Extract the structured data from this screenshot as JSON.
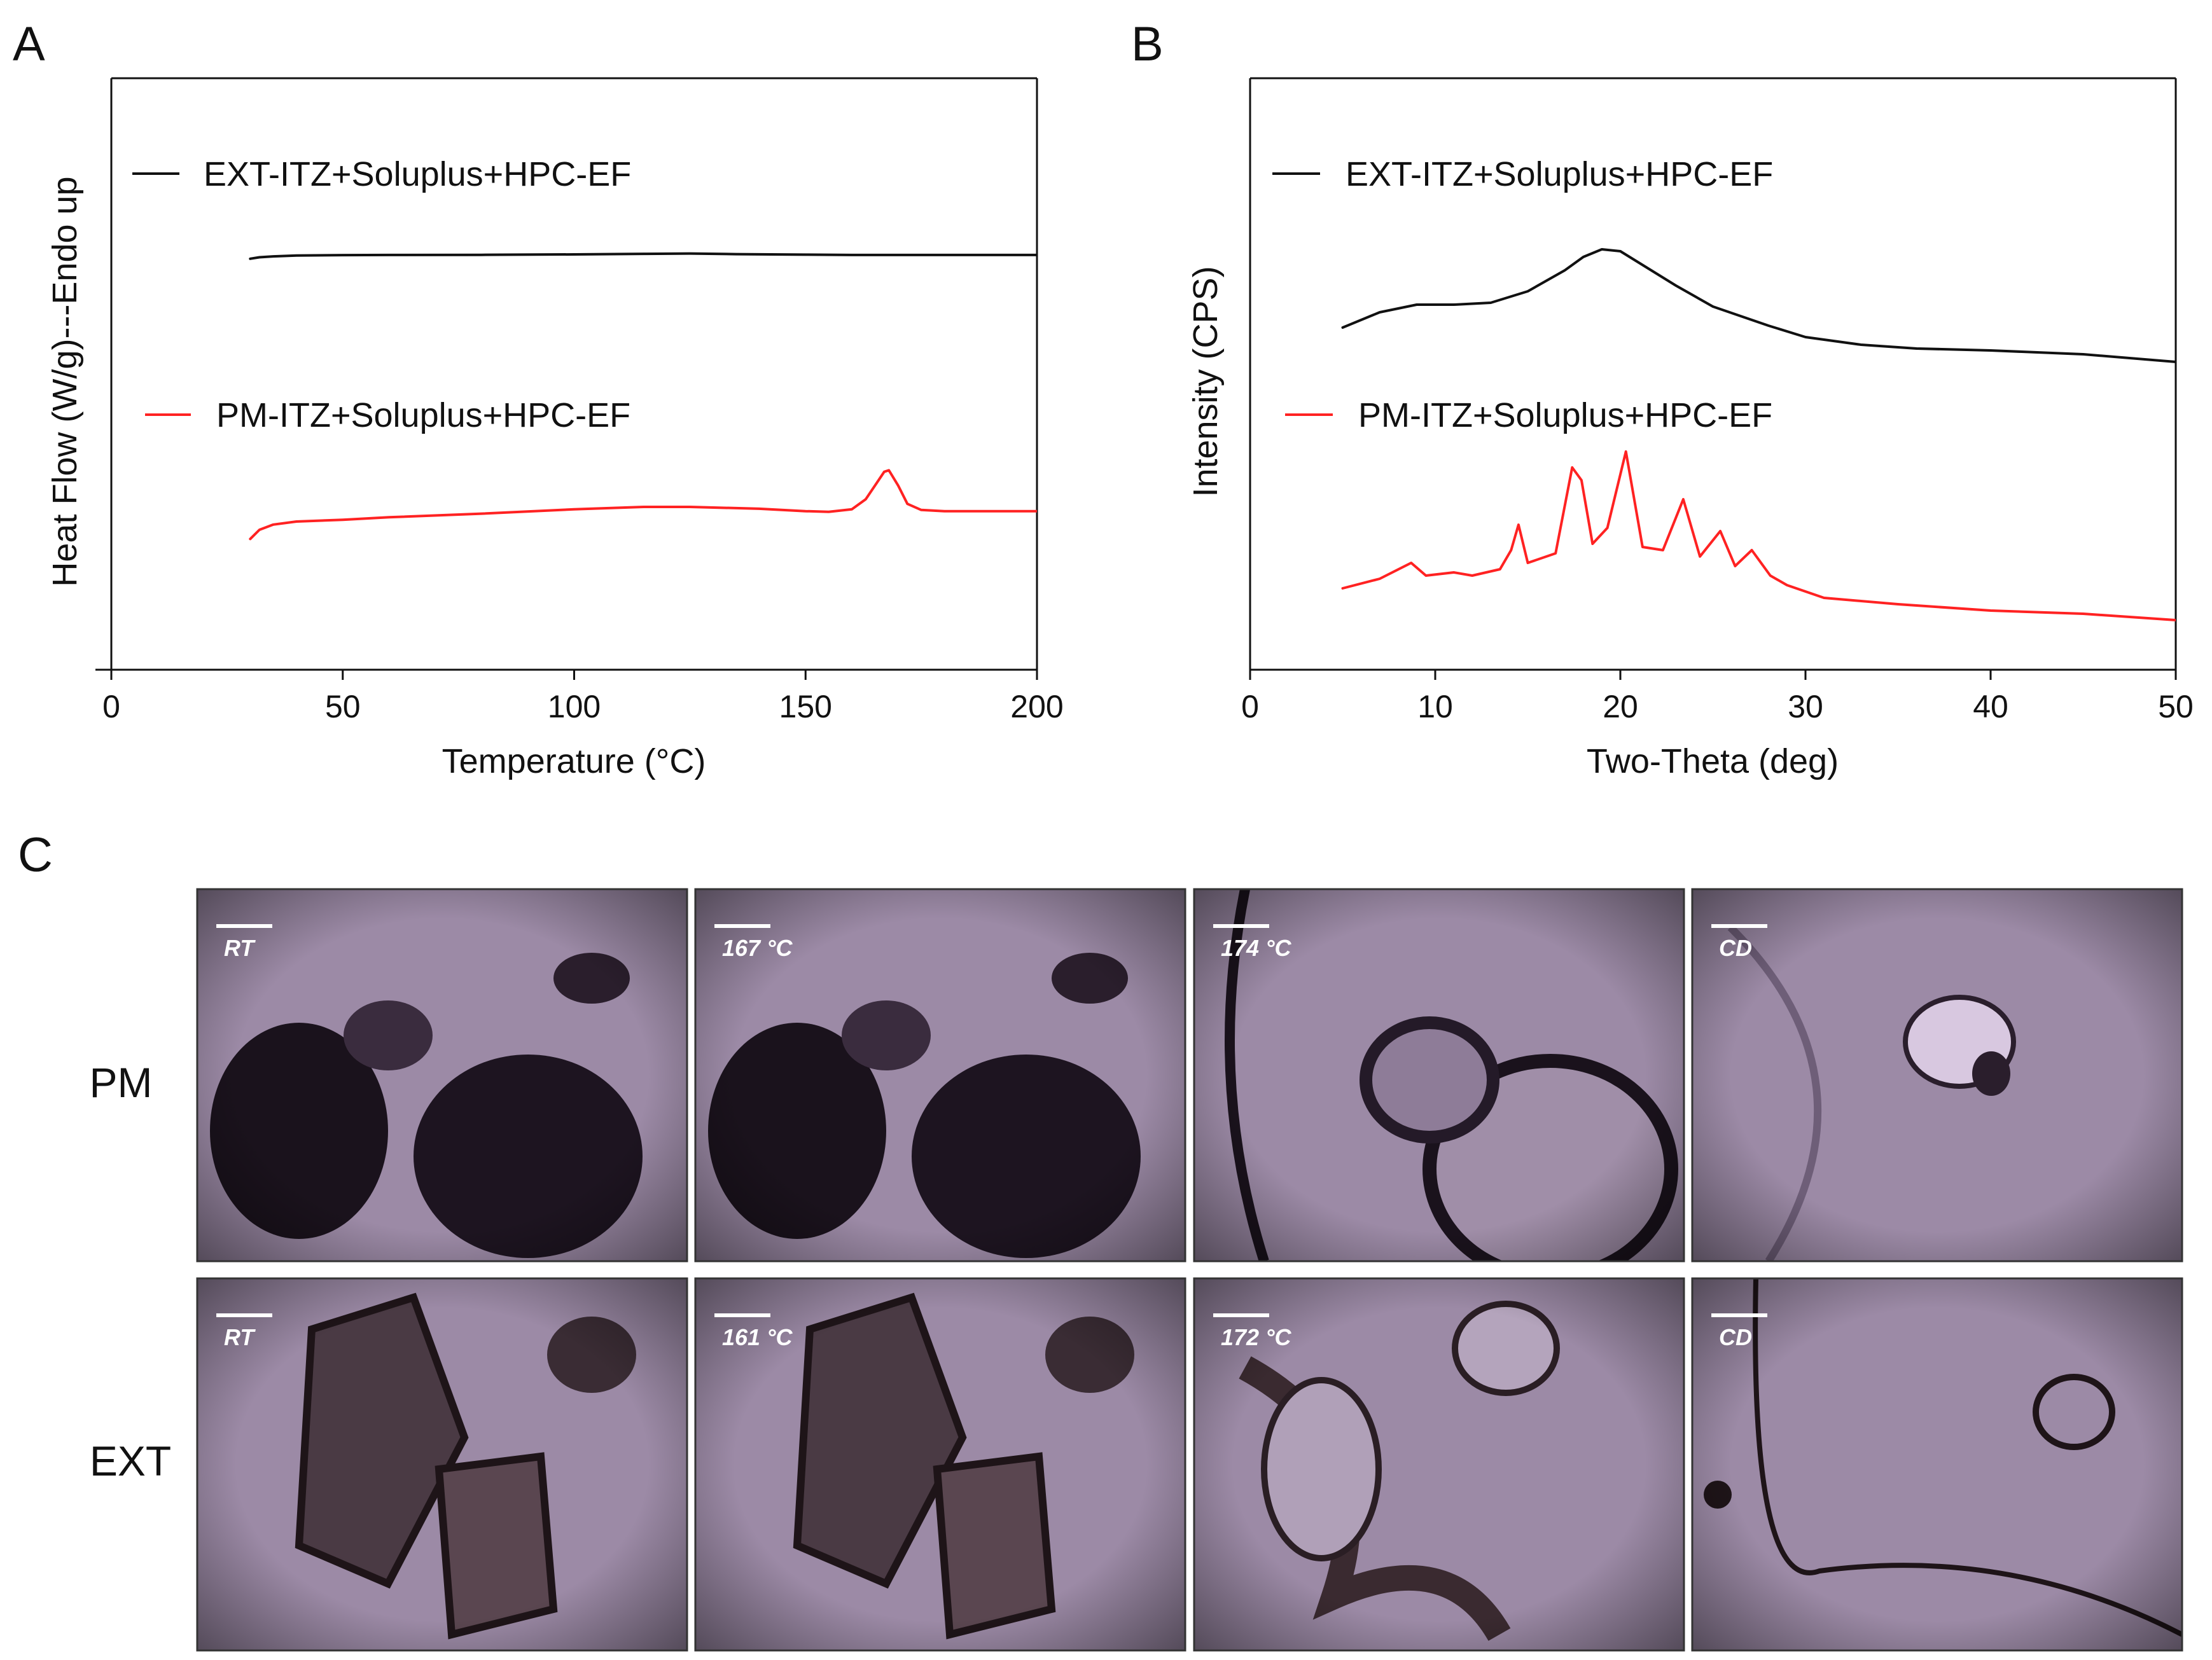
{
  "panels": {
    "a": {
      "letter": "A"
    },
    "b": {
      "letter": "B"
    },
    "c": {
      "letter": "C"
    }
  },
  "colors": {
    "black_trace": "#111111",
    "red_trace": "#ff2222",
    "stage_bg": "#9c8aa6"
  },
  "chart_data": [
    {
      "type": "line",
      "panel": "A",
      "xlabel": "Temperature (°C)",
      "ylabel": "Heat Flow (W/g)---Endo up",
      "xlim": [
        0,
        200
      ],
      "xticks": [
        0,
        50,
        100,
        150,
        200
      ],
      "y_ticks_shown": false,
      "grid": false,
      "legend_placement": "top-left",
      "series": [
        {
          "name": "EXT-ITZ+Soluplus+HPC-EF",
          "color": "#111111",
          "x": [
            30,
            32,
            35,
            40,
            50,
            60,
            80,
            100,
            115,
            125,
            135,
            150,
            160,
            170,
            185,
            200
          ],
          "y": [
            0.85,
            0.9,
            0.93,
            0.96,
            0.975,
            0.98,
            0.985,
            1.0,
            1.02,
            1.03,
            1.01,
            0.99,
            0.98,
            0.98,
            0.98,
            0.98
          ]
        },
        {
          "name": "PM-ITZ+Soluplus+HPC-EF",
          "color": "#ff2222",
          "x": [
            30,
            32,
            35,
            40,
            50,
            60,
            80,
            100,
            115,
            125,
            140,
            150,
            155,
            160,
            163,
            165,
            167,
            168,
            170,
            172,
            175,
            180,
            190,
            200
          ],
          "y": [
            -0.05,
            0.25,
            0.42,
            0.52,
            0.58,
            0.66,
            0.78,
            0.92,
            1.0,
            1.0,
            0.94,
            0.86,
            0.84,
            0.92,
            1.25,
            1.7,
            2.15,
            2.2,
            1.7,
            1.1,
            0.9,
            0.86,
            0.86,
            0.86
          ]
        }
      ]
    },
    {
      "type": "line",
      "panel": "B",
      "xlabel": "Two-Theta (deg)",
      "ylabel": "Intensity (CPS)",
      "xlim": [
        0,
        50
      ],
      "xticks": [
        0,
        10,
        20,
        30,
        40,
        50
      ],
      "y_ticks_shown": false,
      "grid": false,
      "legend_placement": "top-left",
      "series": [
        {
          "name": "EXT-ITZ+Soluplus+HPC-EF",
          "color": "#111111",
          "x": [
            5,
            7,
            9,
            11,
            13,
            15,
            17,
            18,
            19,
            20,
            21,
            23,
            25,
            28,
            30,
            33,
            36,
            40,
            45,
            50
          ],
          "y": [
            0.0,
            0.4,
            0.6,
            0.6,
            0.65,
            0.95,
            1.5,
            1.85,
            2.05,
            2.0,
            1.7,
            1.1,
            0.55,
            0.05,
            -0.25,
            -0.45,
            -0.55,
            -0.6,
            -0.7,
            -0.9
          ]
        },
        {
          "name": "PM-ITZ+Soluplus+HPC-EF",
          "color": "#ff2222",
          "x": [
            5,
            7,
            8.7,
            9.5,
            11,
            12,
            13.5,
            14.1,
            14.5,
            15,
            16.5,
            17.4,
            17.9,
            18.5,
            19.3,
            20.3,
            21.2,
            22.3,
            23.4,
            24.3,
            25.4,
            26.2,
            27.1,
            28.1,
            29,
            31,
            35,
            40,
            45,
            50
          ],
          "y": [
            0.0,
            0.3,
            0.8,
            0.4,
            0.5,
            0.4,
            0.6,
            1.2,
            2.0,
            0.8,
            1.1,
            3.8,
            3.4,
            1.4,
            1.9,
            4.3,
            1.3,
            1.2,
            2.8,
            1.0,
            1.8,
            0.7,
            1.2,
            0.4,
            0.1,
            -0.3,
            -0.5,
            -0.7,
            -0.8,
            -1.0
          ]
        }
      ]
    }
  ],
  "micrographs": {
    "rows": [
      {
        "label": "PM",
        "frames": [
          {
            "label": "RT"
          },
          {
            "label": "167 °C"
          },
          {
            "label": "174 °C"
          },
          {
            "label": "CD"
          }
        ]
      },
      {
        "label": "EXT",
        "frames": [
          {
            "label": "RT"
          },
          {
            "label": "161 °C"
          },
          {
            "label": "172 °C"
          },
          {
            "label": "CD"
          }
        ]
      }
    ]
  }
}
